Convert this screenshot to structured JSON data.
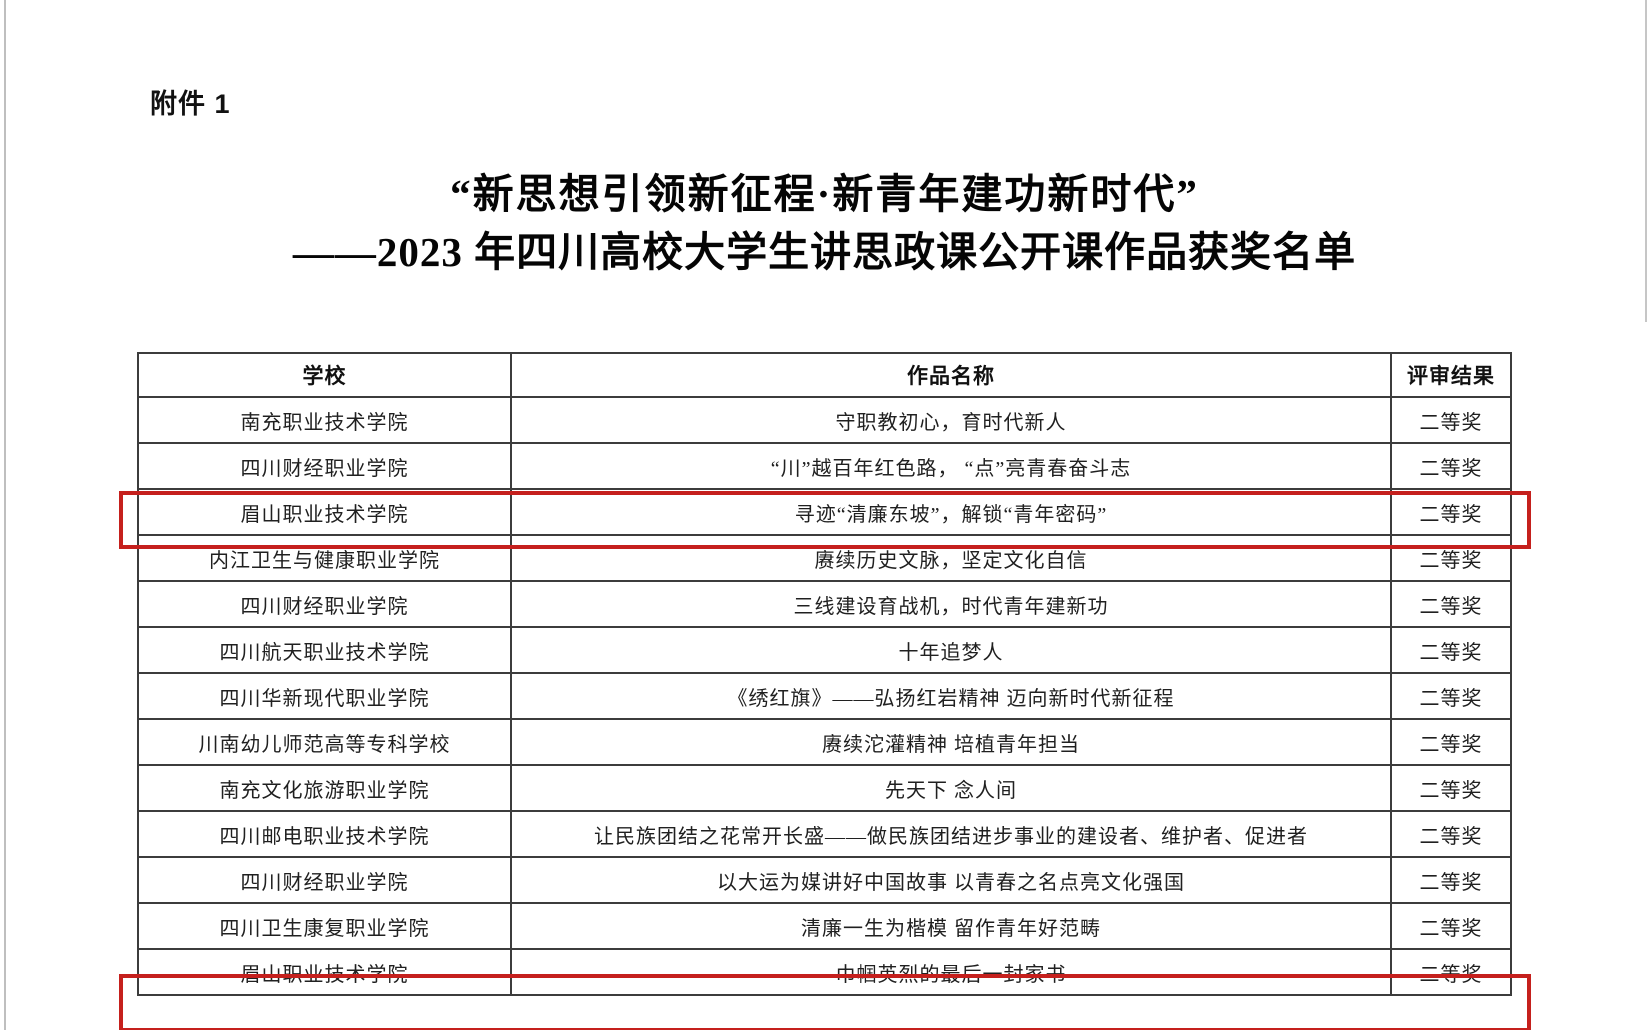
{
  "attachment_label": "附件 1",
  "title": {
    "line1": "“新思想引领新征程·新青年建功新时代”",
    "line2": "——2023 年四川高校大学生讲思政课公开课作品获奖名单"
  },
  "highlight_color": "#c5201d",
  "table": {
    "headers": [
      "学校",
      "作品名称",
      "评审结果"
    ],
    "rows": [
      {
        "school": "南充职业技术学院",
        "work": "守职教初心，育时代新人",
        "result": "二等奖",
        "highlighted": false
      },
      {
        "school": "四川财经职业学院",
        "work": "“川”越百年红色路， “点”亮青春奋斗志",
        "result": "二等奖",
        "highlighted": false
      },
      {
        "school": "眉山职业技术学院",
        "work": "寻迹“清廉东坡”，解锁“青年密码”",
        "result": "二等奖",
        "highlighted": true
      },
      {
        "school": "内江卫生与健康职业学院",
        "work": "赓续历史文脉，坚定文化自信",
        "result": "二等奖",
        "highlighted": false
      },
      {
        "school": "四川财经职业学院",
        "work": "三线建设育战机，时代青年建新功",
        "result": "二等奖",
        "highlighted": false
      },
      {
        "school": "四川航天职业技术学院",
        "work": "十年追梦人",
        "result": "二等奖",
        "highlighted": false
      },
      {
        "school": "四川华新现代职业学院",
        "work": "《绣红旗》——弘扬红岩精神 迈向新时代新征程",
        "result": "二等奖",
        "highlighted": false
      },
      {
        "school": "川南幼儿师范高等专科学校",
        "work": "赓续沱灌精神 培植青年担当",
        "result": "二等奖",
        "highlighted": false
      },
      {
        "school": "南充文化旅游职业学院",
        "work": "先天下 念人间",
        "result": "二等奖",
        "highlighted": false
      },
      {
        "school": "四川邮电职业技术学院",
        "work": "让民族团结之花常开长盛——做民族团结进步事业的建设者、维护者、促进者",
        "result": "二等奖",
        "highlighted": false
      },
      {
        "school": "四川财经职业学院",
        "work": "以大运为媒讲好中国故事 以青春之名点亮文化强国",
        "result": "二等奖",
        "highlighted": false
      },
      {
        "school": "四川卫生康复职业学院",
        "work": "清廉一生为楷模 留作青年好范畴",
        "result": "二等奖",
        "highlighted": false
      },
      {
        "school": "眉山职业技术学院",
        "work": "巾帼英烈的最后一封家书",
        "result": "二等奖",
        "highlighted": true
      }
    ]
  }
}
